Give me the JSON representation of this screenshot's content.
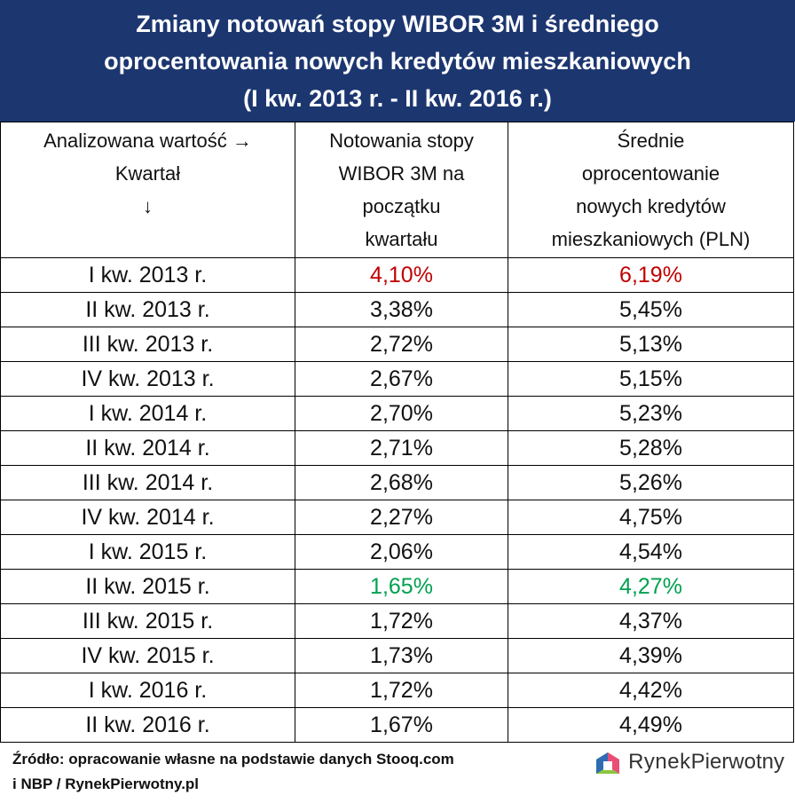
{
  "header": {
    "title": [
      "Zmiany notowań stopy WIBOR 3M i średniego",
      "oprocentowania nowych kredytów mieszkaniowych",
      "(I kw. 2013 r. - II kw. 2016 r.)"
    ]
  },
  "table": {
    "columns": [
      [
        "Analizowana wartość →",
        "Kwartał",
        "↓"
      ],
      [
        "Notowania stopy",
        "WIBOR 3M na",
        "początku",
        "kwartału"
      ],
      [
        "Średnie",
        "oprocentowanie",
        "nowych kredytów",
        "mieszkaniowych (PLN)"
      ]
    ],
    "rows": [
      [
        "I kw. 2013 r.",
        "4,10%",
        "6,19%"
      ],
      [
        "II kw. 2013 r.",
        "3,38%",
        "5,45%"
      ],
      [
        "III kw. 2013 r.",
        "2,72%",
        "5,13%"
      ],
      [
        "IV kw. 2013 r.",
        "2,67%",
        "5,15%"
      ],
      [
        "I kw. 2014 r.",
        "2,70%",
        "5,23%"
      ],
      [
        "II kw. 2014 r.",
        "2,71%",
        "5,28%"
      ],
      [
        "III kw. 2014 r.",
        "2,68%",
        "5,26%"
      ],
      [
        "IV kw. 2014 r.",
        "2,27%",
        "4,75%"
      ],
      [
        "I kw. 2015 r.",
        "2,06%",
        "4,54%"
      ],
      [
        "II kw. 2015 r.",
        "1,65%",
        "4,27%"
      ],
      [
        "III kw. 2015 r.",
        "1,72%",
        "4,37%"
      ],
      [
        "IV kw. 2015 r.",
        "1,73%",
        "4,39%"
      ],
      [
        "I kw. 2016 r.",
        "1,72%",
        "4,42%"
      ],
      [
        "II kw. 2016 r.",
        "1,67%",
        "4,49%"
      ]
    ]
  },
  "footer": {
    "source": [
      "Źródło: opracowanie własne na podstawie danych Stooq.com",
      "i NBP / RynekPierwotny.pl"
    ],
    "logo": [
      "Rynek",
      "Pierwotny"
    ]
  }
}
